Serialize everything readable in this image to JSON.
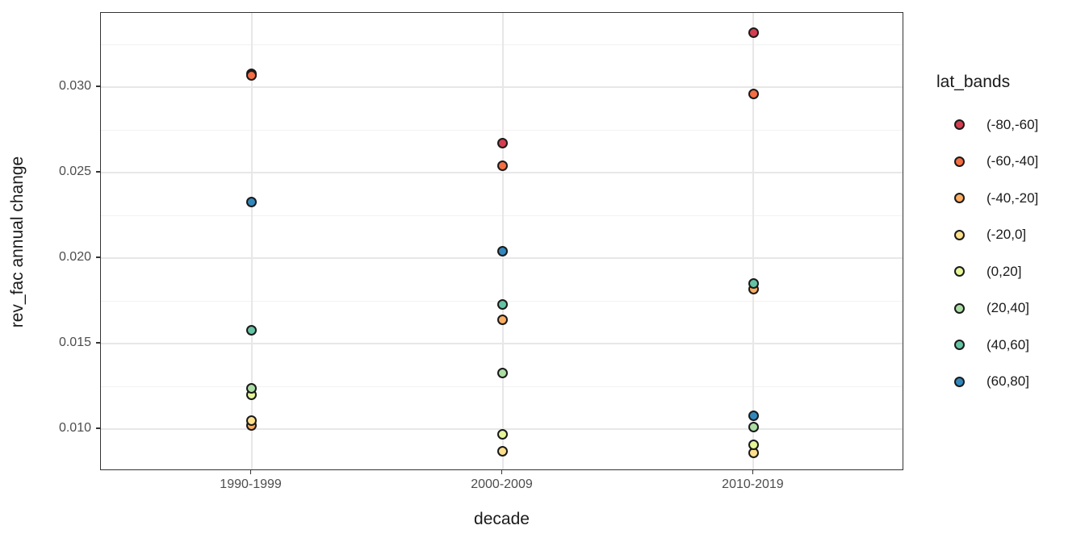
{
  "figure": {
    "background": "#FFFFFF",
    "panel_border_color": "#333333",
    "grid_major_color": "#E7E7E7",
    "grid_minor_color": "#F2F2F2",
    "tick_label_color": "#4D4D4D",
    "title_color": "#1A1A1A",
    "point_edge_color": "#1A1A1A"
  },
  "chart_data": {
    "type": "scatter",
    "title": "",
    "xlabel": "decade",
    "ylabel": "rev_fac annual change",
    "categories": [
      "1990-1999",
      "2000-2009",
      "2010-2019"
    ],
    "yticks": [
      0.01,
      0.015,
      0.02,
      0.025,
      0.03
    ],
    "ytick_labels": [
      "0.010",
      "0.015",
      "0.020",
      "0.025",
      "0.030"
    ],
    "yminor": [
      0.0125,
      0.0175,
      0.0225,
      0.0275,
      0.0325
    ],
    "ylim": [
      0.00755,
      0.03434
    ],
    "grid": true,
    "legend_title": "lat_bands",
    "legend_position": "right",
    "series": [
      {
        "name": "(-80,-60]",
        "color": "#D53E4F",
        "values": [
          0.0308,
          0.0267,
          0.0332
        ]
      },
      {
        "name": "(-60,-40]",
        "color": "#F46D43",
        "values": [
          0.0307,
          0.0254,
          0.0296
        ]
      },
      {
        "name": "(-40,-20]",
        "color": "#FDAE61",
        "values": [
          0.0102,
          0.0164,
          0.0182
        ]
      },
      {
        "name": "(-20,0]",
        "color": "#FEE08B",
        "values": [
          0.0105,
          0.0087,
          0.0086
        ]
      },
      {
        "name": "(0,20]",
        "color": "#E6F598",
        "values": [
          0.012,
          0.0097,
          0.0091
        ]
      },
      {
        "name": "(20,40]",
        "color": "#ABDDA4",
        "values": [
          0.0124,
          0.0133,
          0.0101
        ]
      },
      {
        "name": "(40,60]",
        "color": "#66C2A5",
        "values": [
          0.0158,
          0.0173,
          0.0185
        ]
      },
      {
        "name": "(60,80]",
        "color": "#3288BD",
        "values": [
          0.0233,
          0.0204,
          0.0108
        ]
      }
    ]
  }
}
